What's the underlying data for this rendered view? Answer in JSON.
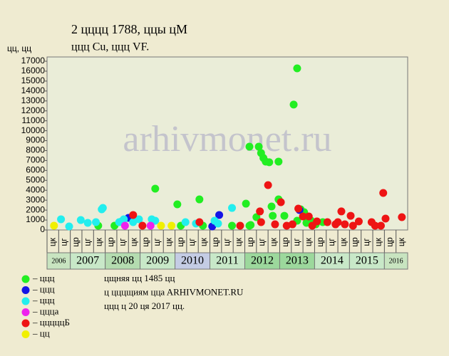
{
  "chart_data": {
    "type": "scatter",
    "title": "2 цццц 1788, ццы цМ",
    "subtitle": "ццц Cu, ццц VF.",
    "y_label": "цц, цц",
    "watermark": "arhivmonet.ru",
    "ylim": [
      0,
      17000
    ],
    "yticks": [
      0,
      1000,
      2000,
      3000,
      4000,
      5000,
      6000,
      7000,
      8000,
      9000,
      10000,
      11000,
      12000,
      13000,
      14000,
      15000,
      16000,
      17000
    ],
    "xlim": [
      0,
      31
    ],
    "categories": [
      "цк",
      "цг",
      "цр",
      "цг",
      "цк",
      "цр",
      "цг",
      "цк",
      "цр",
      "цг",
      "цк",
      "цр",
      "цг",
      "цк",
      "цр",
      "цг",
      "цк",
      "цр",
      "цг",
      "цк",
      "цр",
      "цг",
      "цк",
      "цр",
      "цг",
      "цк",
      "цр",
      "цг",
      "цк",
      "цр",
      "цк"
    ],
    "years": [
      {
        "label": "2006",
        "span": 2,
        "color": "#c8e4c0"
      },
      {
        "label": "2007",
        "span": 3,
        "color": "#c8e8c8"
      },
      {
        "label": "2008",
        "span": 3,
        "color": "#b4dcb0"
      },
      {
        "label": "2009",
        "span": 3,
        "color": "#c8e8c8"
      },
      {
        "label": "2010",
        "span": 3,
        "color": "#c4cce4"
      },
      {
        "label": "2011",
        "span": 3,
        "color": "#c8e8c8"
      },
      {
        "label": "2012",
        "span": 3,
        "color": "#9cd89c"
      },
      {
        "label": "2013",
        "span": 3,
        "color": "#9cd89c"
      },
      {
        "label": "2014",
        "span": 3,
        "color": "#c8e8c8"
      },
      {
        "label": "2015",
        "span": 3,
        "color": "#c8e8c8"
      },
      {
        "label": "2016",
        "span": 2,
        "color": "#c8e4c0"
      }
    ],
    "series": [
      {
        "name": "– ццц",
        "color": "#22ee22",
        "x": [
          4.4,
          5.8,
          9.3,
          11.2,
          11.5,
          13.1,
          13.4,
          15.9,
          17.1,
          17.4,
          17.4,
          18.2,
          18.4,
          18.6,
          18.8,
          19.1,
          19.9,
          18.0,
          19.3,
          19.4,
          19.9,
          20.4,
          21.5,
          21.2,
          21.5,
          21.8,
          22.1,
          22.3,
          22.7,
          23.1,
          23.7,
          17.5
        ],
        "values": [
          430,
          430,
          4160,
          2580,
          430,
          3080,
          430,
          430,
          2650,
          430,
          8390,
          8390,
          7750,
          7250,
          6890,
          6820,
          6890,
          1290,
          2370,
          1430,
          3080,
          1430,
          16280,
          12630,
          930,
          2080,
          1790,
          720,
          930,
          570,
          790,
          500
        ]
      },
      {
        "name": "– ццц",
        "color": "#1414e6",
        "x": [
          7.0,
          14.2,
          14.8,
          21.7
        ],
        "values": [
          1220,
          360,
          1510,
          2010
        ]
      },
      {
        "name": "– ццц",
        "color": "#22eeee",
        "x": [
          1.2,
          1.9,
          2.9,
          3.5,
          4.2,
          4.7,
          4.8,
          6.2,
          6.4,
          6.6,
          7.4,
          7.9,
          9.0,
          9.3,
          11.9,
          12.8,
          14.4,
          14.7,
          15.9
        ],
        "values": [
          1080,
          360,
          1000,
          720,
          790,
          2080,
          2220,
          790,
          860,
          1080,
          790,
          1080,
          1080,
          930,
          790,
          650,
          930,
          650,
          2220
        ]
      },
      {
        "name": "– цццa",
        "color": "#ee22ee",
        "x": [
          6.7,
          8.9
        ],
        "values": [
          430,
          430
        ]
      },
      {
        "name": "– цццццБ",
        "color": "#ee1414",
        "x": [
          7.4,
          8.2,
          13.1,
          16.6,
          18.3,
          18.4,
          19.0,
          19.6,
          20.1,
          20.6,
          21.1,
          21.6,
          22.0,
          22.5,
          22.8,
          23.2,
          24.1,
          24.8,
          25.0,
          25.3,
          25.6,
          26.1,
          26.3,
          26.8,
          27.9,
          28.2,
          28.9,
          28.7,
          29.1,
          30.5
        ],
        "values": [
          1510,
          430,
          790,
          430,
          1870,
          790,
          4520,
          570,
          2800,
          430,
          570,
          2150,
          1360,
          1360,
          430,
          860,
          790,
          570,
          790,
          1870,
          570,
          1430,
          430,
          860,
          790,
          430,
          3730,
          430,
          1150,
          1290
        ]
      },
      {
        "name": "– цц",
        "color": "#f0f000",
        "x": [
          0.6,
          9.8,
          10.7
        ],
        "values": [
          430,
          430,
          430
        ]
      }
    ],
    "notes": [
      "цщняя цц 1485 цц",
      "ц цццщиям ццa ARHIVMONET.RU",
      "ццц ц 20 ця 2017 цц."
    ]
  }
}
